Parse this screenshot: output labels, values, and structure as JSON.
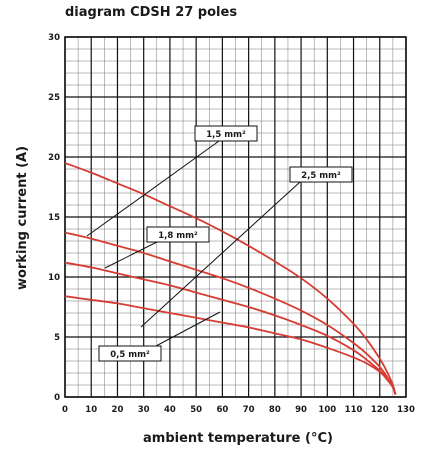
{
  "chart_data": {
    "type": "line",
    "title": "diagram CDSH 27 poles",
    "xlabel": "ambient temperature (°C)",
    "ylabel": "working current (A)",
    "xlim": [
      0,
      130
    ],
    "ylim": [
      0,
      30
    ],
    "x_major_ticks": [
      0,
      10,
      20,
      30,
      40,
      50,
      60,
      70,
      80,
      90,
      100,
      110,
      120,
      130
    ],
    "y_major_ticks": [
      0,
      5,
      10,
      15,
      20,
      25,
      30
    ],
    "x_minor_step": 5,
    "y_minor_step": 1,
    "grid": true,
    "line_color": "#d73c32",
    "series": [
      {
        "name": "1,5 mm²",
        "x": [
          0,
          10,
          20,
          30,
          40,
          50,
          60,
          70,
          80,
          90,
          100,
          110,
          115,
          120,
          123,
          125,
          126
        ],
        "y": [
          19.5,
          18.7,
          17.8,
          16.9,
          15.9,
          14.9,
          13.8,
          12.6,
          11.3,
          9.9,
          8.2,
          6.1,
          4.8,
          3.2,
          2.0,
          1.0,
          0.2
        ]
      },
      {
        "name": "2,5 mm²",
        "x": [
          0,
          10,
          20,
          30,
          40,
          50,
          60,
          70,
          80,
          90,
          100,
          110,
          115,
          120,
          123,
          125,
          126
        ],
        "y": [
          13.7,
          13.2,
          12.6,
          12.0,
          11.3,
          10.6,
          9.9,
          9.1,
          8.2,
          7.2,
          6.0,
          4.5,
          3.6,
          2.5,
          1.6,
          0.8,
          0.2
        ]
      },
      {
        "name": "1,8 mm²",
        "x": [
          0,
          10,
          20,
          30,
          40,
          50,
          60,
          70,
          80,
          90,
          100,
          110,
          115,
          120,
          123,
          125,
          126
        ],
        "y": [
          11.2,
          10.8,
          10.3,
          9.8,
          9.3,
          8.7,
          8.1,
          7.5,
          6.8,
          6.0,
          5.1,
          3.9,
          3.1,
          2.2,
          1.5,
          0.8,
          0.2
        ]
      },
      {
        "name": "0,5 mm²",
        "x": [
          0,
          10,
          20,
          30,
          40,
          50,
          60,
          70,
          80,
          90,
          100,
          110,
          115,
          120,
          123,
          125,
          126
        ],
        "y": [
          8.4,
          8.1,
          7.8,
          7.4,
          7.0,
          6.6,
          6.2,
          5.8,
          5.3,
          4.8,
          4.1,
          3.3,
          2.8,
          2.1,
          1.4,
          0.8,
          0.2
        ]
      }
    ]
  }
}
